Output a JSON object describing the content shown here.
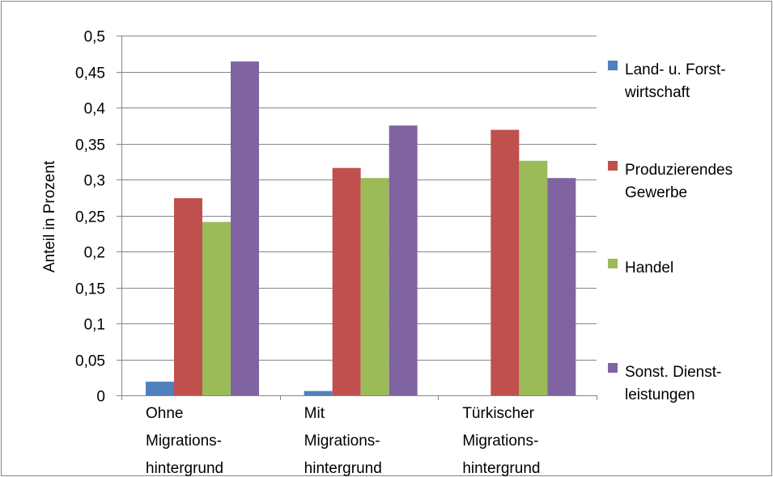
{
  "chart_data": {
    "type": "bar",
    "title": "",
    "xlabel": "",
    "ylabel": "Anteil in Prozent",
    "ylim": [
      0,
      0.5
    ],
    "yticks": [
      {
        "value": 0,
        "label": "0"
      },
      {
        "value": 0.05,
        "label": "0,05"
      },
      {
        "value": 0.1,
        "label": "0,1"
      },
      {
        "value": 0.15,
        "label": "0,15"
      },
      {
        "value": 0.2,
        "label": "0,2"
      },
      {
        "value": 0.25,
        "label": "0,25"
      },
      {
        "value": 0.3,
        "label": "0,3"
      },
      {
        "value": 0.35,
        "label": "0,35"
      },
      {
        "value": 0.4,
        "label": "0,4"
      },
      {
        "value": 0.45,
        "label": "0,45"
      },
      {
        "value": 0.5,
        "label": "0,5"
      }
    ],
    "grid": true,
    "legend_position": "right",
    "categories": [
      [
        "Ohne",
        "Migrations-",
        "hintergrund"
      ],
      [
        "Mit",
        "Migrations-",
        "hintergrund"
      ],
      [
        "Türkischer",
        "Migrations-",
        "hintergrund"
      ]
    ],
    "series": [
      {
        "name": [
          "Land- u. Forst-",
          "wirtschaft"
        ],
        "color": "#4f81bd",
        "values": [
          0.019,
          0.006,
          0
        ]
      },
      {
        "name": [
          "Produzierendes",
          "Gewerbe"
        ],
        "color": "#c0504d",
        "values": [
          0.274,
          0.316,
          0.369
        ]
      },
      {
        "name": [
          "Handel"
        ],
        "color": "#9bbb59",
        "values": [
          0.241,
          0.302,
          0.326
        ]
      },
      {
        "name": [
          "Sonst. Dienst-",
          "leistungen"
        ],
        "color": "#8064a2",
        "values": [
          0.464,
          0.375,
          0.302
        ]
      }
    ]
  }
}
